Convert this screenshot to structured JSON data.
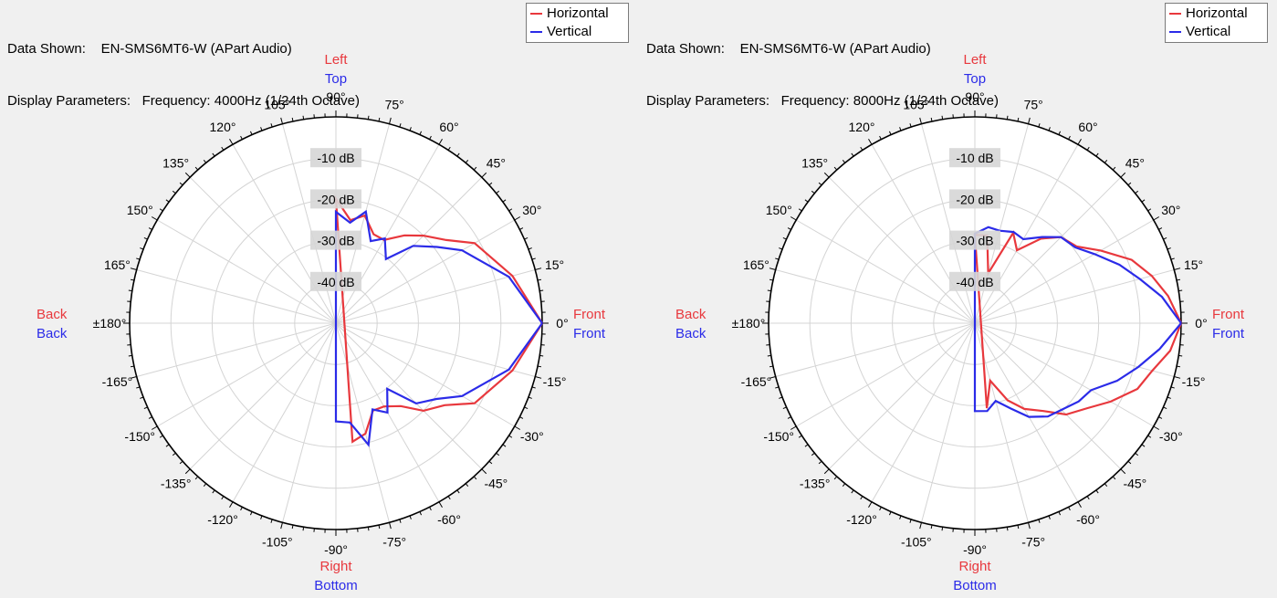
{
  "colors": {
    "horizontal": "#e8383d",
    "vertical": "#2b2be8",
    "grid": "#d4d4d4",
    "label_bg": "#d6d6d6"
  },
  "side_labels": {
    "left_top": "Left",
    "left_top2": "Top",
    "right_bottom": "Right",
    "right_bottom2": "Bottom",
    "back_h": "Back",
    "back_v": "Back",
    "front_h": "Front",
    "front_v": "Front"
  },
  "chart_data": [
    {
      "type": "polar",
      "data_shown_label": "Data Shown:",
      "data_shown": "EN-SMS6MT6-W (APart Audio)",
      "display_label": "Display Parameters:",
      "display": "Frequency: 4000Hz (1/24th Octave)",
      "radial_labels": [
        "-10 dB",
        "-20 dB",
        "-30 dB",
        "-40 dB"
      ],
      "radial_range_db": [
        -50,
        0
      ],
      "angle_labels": [
        "0°",
        "15°",
        "30°",
        "45°",
        "60°",
        "75°",
        "90°",
        "105°",
        "120°",
        "135°",
        "150°",
        "165°",
        "±180°",
        "-165°",
        "-150°",
        "-135°",
        "-120°",
        "-105°",
        "-90°",
        "-75°",
        "-60°",
        "-45°",
        "-30°",
        "-15°"
      ],
      "legend": [
        "Horizontal",
        "Vertical"
      ],
      "series": [
        {
          "name": "Horizontal",
          "angles": [
            0,
            15,
            30,
            37,
            45,
            52,
            60,
            67,
            75,
            82,
            90,
            -82,
            -75,
            -67,
            -60,
            -52,
            -45,
            -37,
            -30,
            -15,
            0
          ],
          "values": [
            0,
            -5.7,
            -11.2,
            -16.5,
            -20,
            -23,
            -26.7,
            -26.6,
            -23,
            -24.8,
            -19.8,
            -21,
            -22.3,
            -27,
            -26.7,
            -24.5,
            -20,
            -17,
            -11.2,
            -5.7,
            0
          ]
        },
        {
          "name": "Vertical",
          "angles": [
            0,
            15,
            30,
            37,
            45,
            52,
            60,
            67,
            75,
            82,
            90,
            -90,
            -82,
            -75,
            -67,
            -60,
            -52,
            -45,
            -37,
            -30,
            -15,
            0
          ],
          "values": [
            0,
            -6.6,
            -14.7,
            -19.3,
            -23.5,
            -30.3,
            -26.3,
            -28.4,
            -22,
            -25.4,
            -23,
            -26.2,
            -25.7,
            -19.5,
            -27.3,
            -25,
            -29.8,
            -22.5,
            -19.5,
            -14.7,
            -6.6,
            0
          ]
        }
      ]
    },
    {
      "type": "polar",
      "data_shown_label": "Data Shown:",
      "data_shown": "EN-SMS6MT6-W (APart Audio)",
      "display_label": "Display Parameters:",
      "display": "Frequency: 8000Hz (1/24th Octave)",
      "radial_labels": [
        "-10 dB",
        "-20 dB",
        "-30 dB",
        "-40 dB"
      ],
      "radial_range_db": [
        -50,
        0
      ],
      "angle_labels": [
        "0°",
        "15°",
        "30°",
        "45°",
        "60°",
        "75°",
        "90°",
        "105°",
        "120°",
        "135°",
        "150°",
        "165°",
        "±180°",
        "-165°",
        "-150°",
        "-135°",
        "-120°",
        "-105°",
        "-90°",
        "-75°",
        "-60°",
        "-45°",
        "-30°",
        "-15°"
      ],
      "legend": [
        "Horizontal",
        "Vertical"
      ],
      "series": [
        {
          "name": "Horizontal",
          "angles": [
            0,
            8,
            15,
            22,
            30,
            37,
            45,
            52,
            60,
            67,
            75,
            82,
            90,
            -82,
            -75,
            -67,
            -60,
            -52,
            -45,
            -37,
            -30,
            -22,
            -15,
            -8,
            0
          ],
          "values": [
            0,
            -2.7,
            -5.6,
            -9,
            -14.8,
            -19.1,
            -20.5,
            -24,
            -29.6,
            -26.2,
            -37.5,
            -28.5,
            -28.6,
            -29.2,
            -35.6,
            -29.7,
            -26,
            -23,
            -18.7,
            -15.8,
            -12,
            -7.5,
            -5.5,
            -2.2,
            0
          ]
        },
        {
          "name": "Vertical",
          "angles": [
            0,
            8,
            15,
            22,
            30,
            37,
            45,
            52,
            60,
            67,
            75,
            82,
            90,
            -90,
            -82,
            -75,
            -67,
            -60,
            -52,
            -45,
            -37,
            -30,
            -22,
            -15,
            -8,
            0
          ],
          "values": [
            0,
            -4.2,
            -8.6,
            -12.2,
            -16.5,
            -19.5,
            -20.5,
            -23.5,
            -26.5,
            -26,
            -26.8,
            -26.5,
            -28.3,
            -28.7,
            -28.5,
            -30.5,
            -27.5,
            -23.8,
            -21.3,
            -20.3,
            -18.5,
            -17.5,
            -12.8,
            -9,
            -4.8,
            0
          ]
        }
      ]
    }
  ]
}
